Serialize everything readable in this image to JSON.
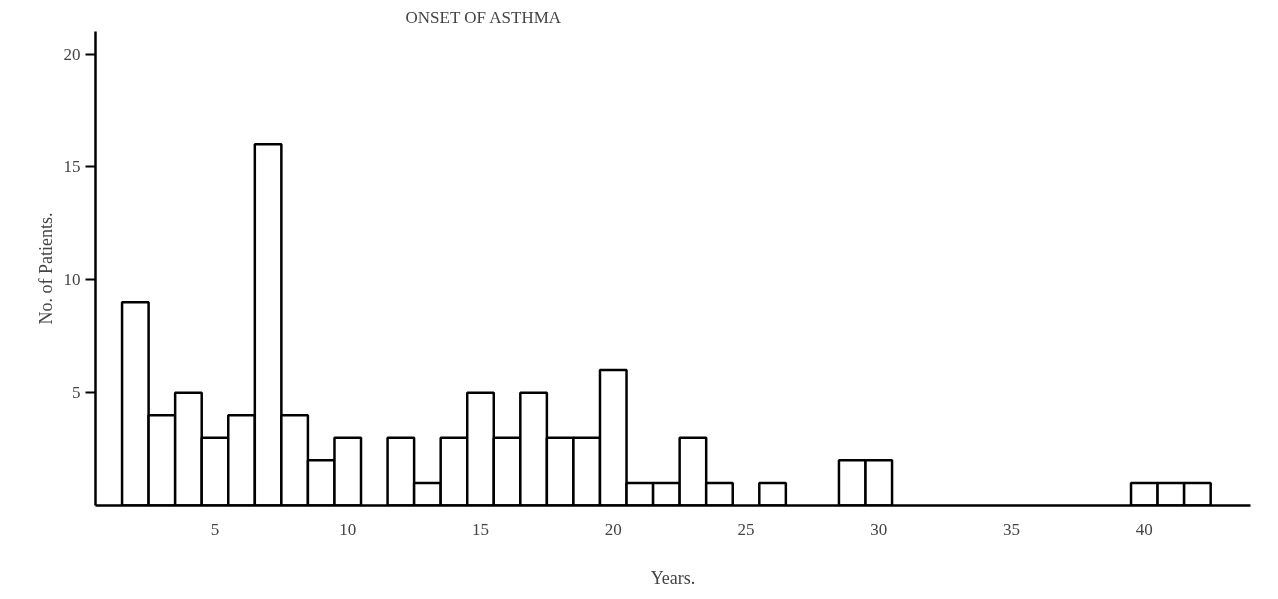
{
  "chart_data": {
    "type": "histogram",
    "title": "ONSET OF ASTHMA",
    "xlabel": "Years.",
    "ylabel": "No. of Patients.",
    "bins": [
      1.5,
      2.5,
      3.5,
      4.5,
      5.5,
      6.5,
      7.5,
      8.5,
      9.5,
      10.5,
      11.5,
      12.5,
      13.5,
      14.5,
      15.5,
      16.5,
      17.5,
      18.5,
      19.5,
      20.5,
      21.5,
      22.5,
      23.5,
      24.5,
      25.5,
      26.5,
      27.5,
      28.5,
      29.5,
      30.5,
      31.5,
      32.5,
      33.5,
      34.5,
      35.5,
      36.5,
      37.5,
      38.5,
      39.5,
      40.5,
      41.5,
      42.5
    ],
    "values": [
      9,
      4,
      5,
      3,
      4,
      16,
      4,
      2,
      3,
      0,
      3,
      1,
      3,
      5,
      3,
      5,
      3,
      3,
      6,
      1,
      1,
      3,
      1,
      0,
      1,
      0,
      0,
      2,
      2,
      0,
      0,
      0,
      0,
      0,
      0,
      0,
      0,
      0,
      1,
      1,
      1
    ],
    "color": "#ffffff",
    "xlim": [
      0.5,
      44
    ],
    "xticks": [
      5,
      10,
      15,
      20,
      25,
      30,
      35,
      40
    ],
    "ylim": [
      0,
      21
    ],
    "yticks": [
      5,
      10,
      15,
      20
    ],
    "grid": false
  }
}
